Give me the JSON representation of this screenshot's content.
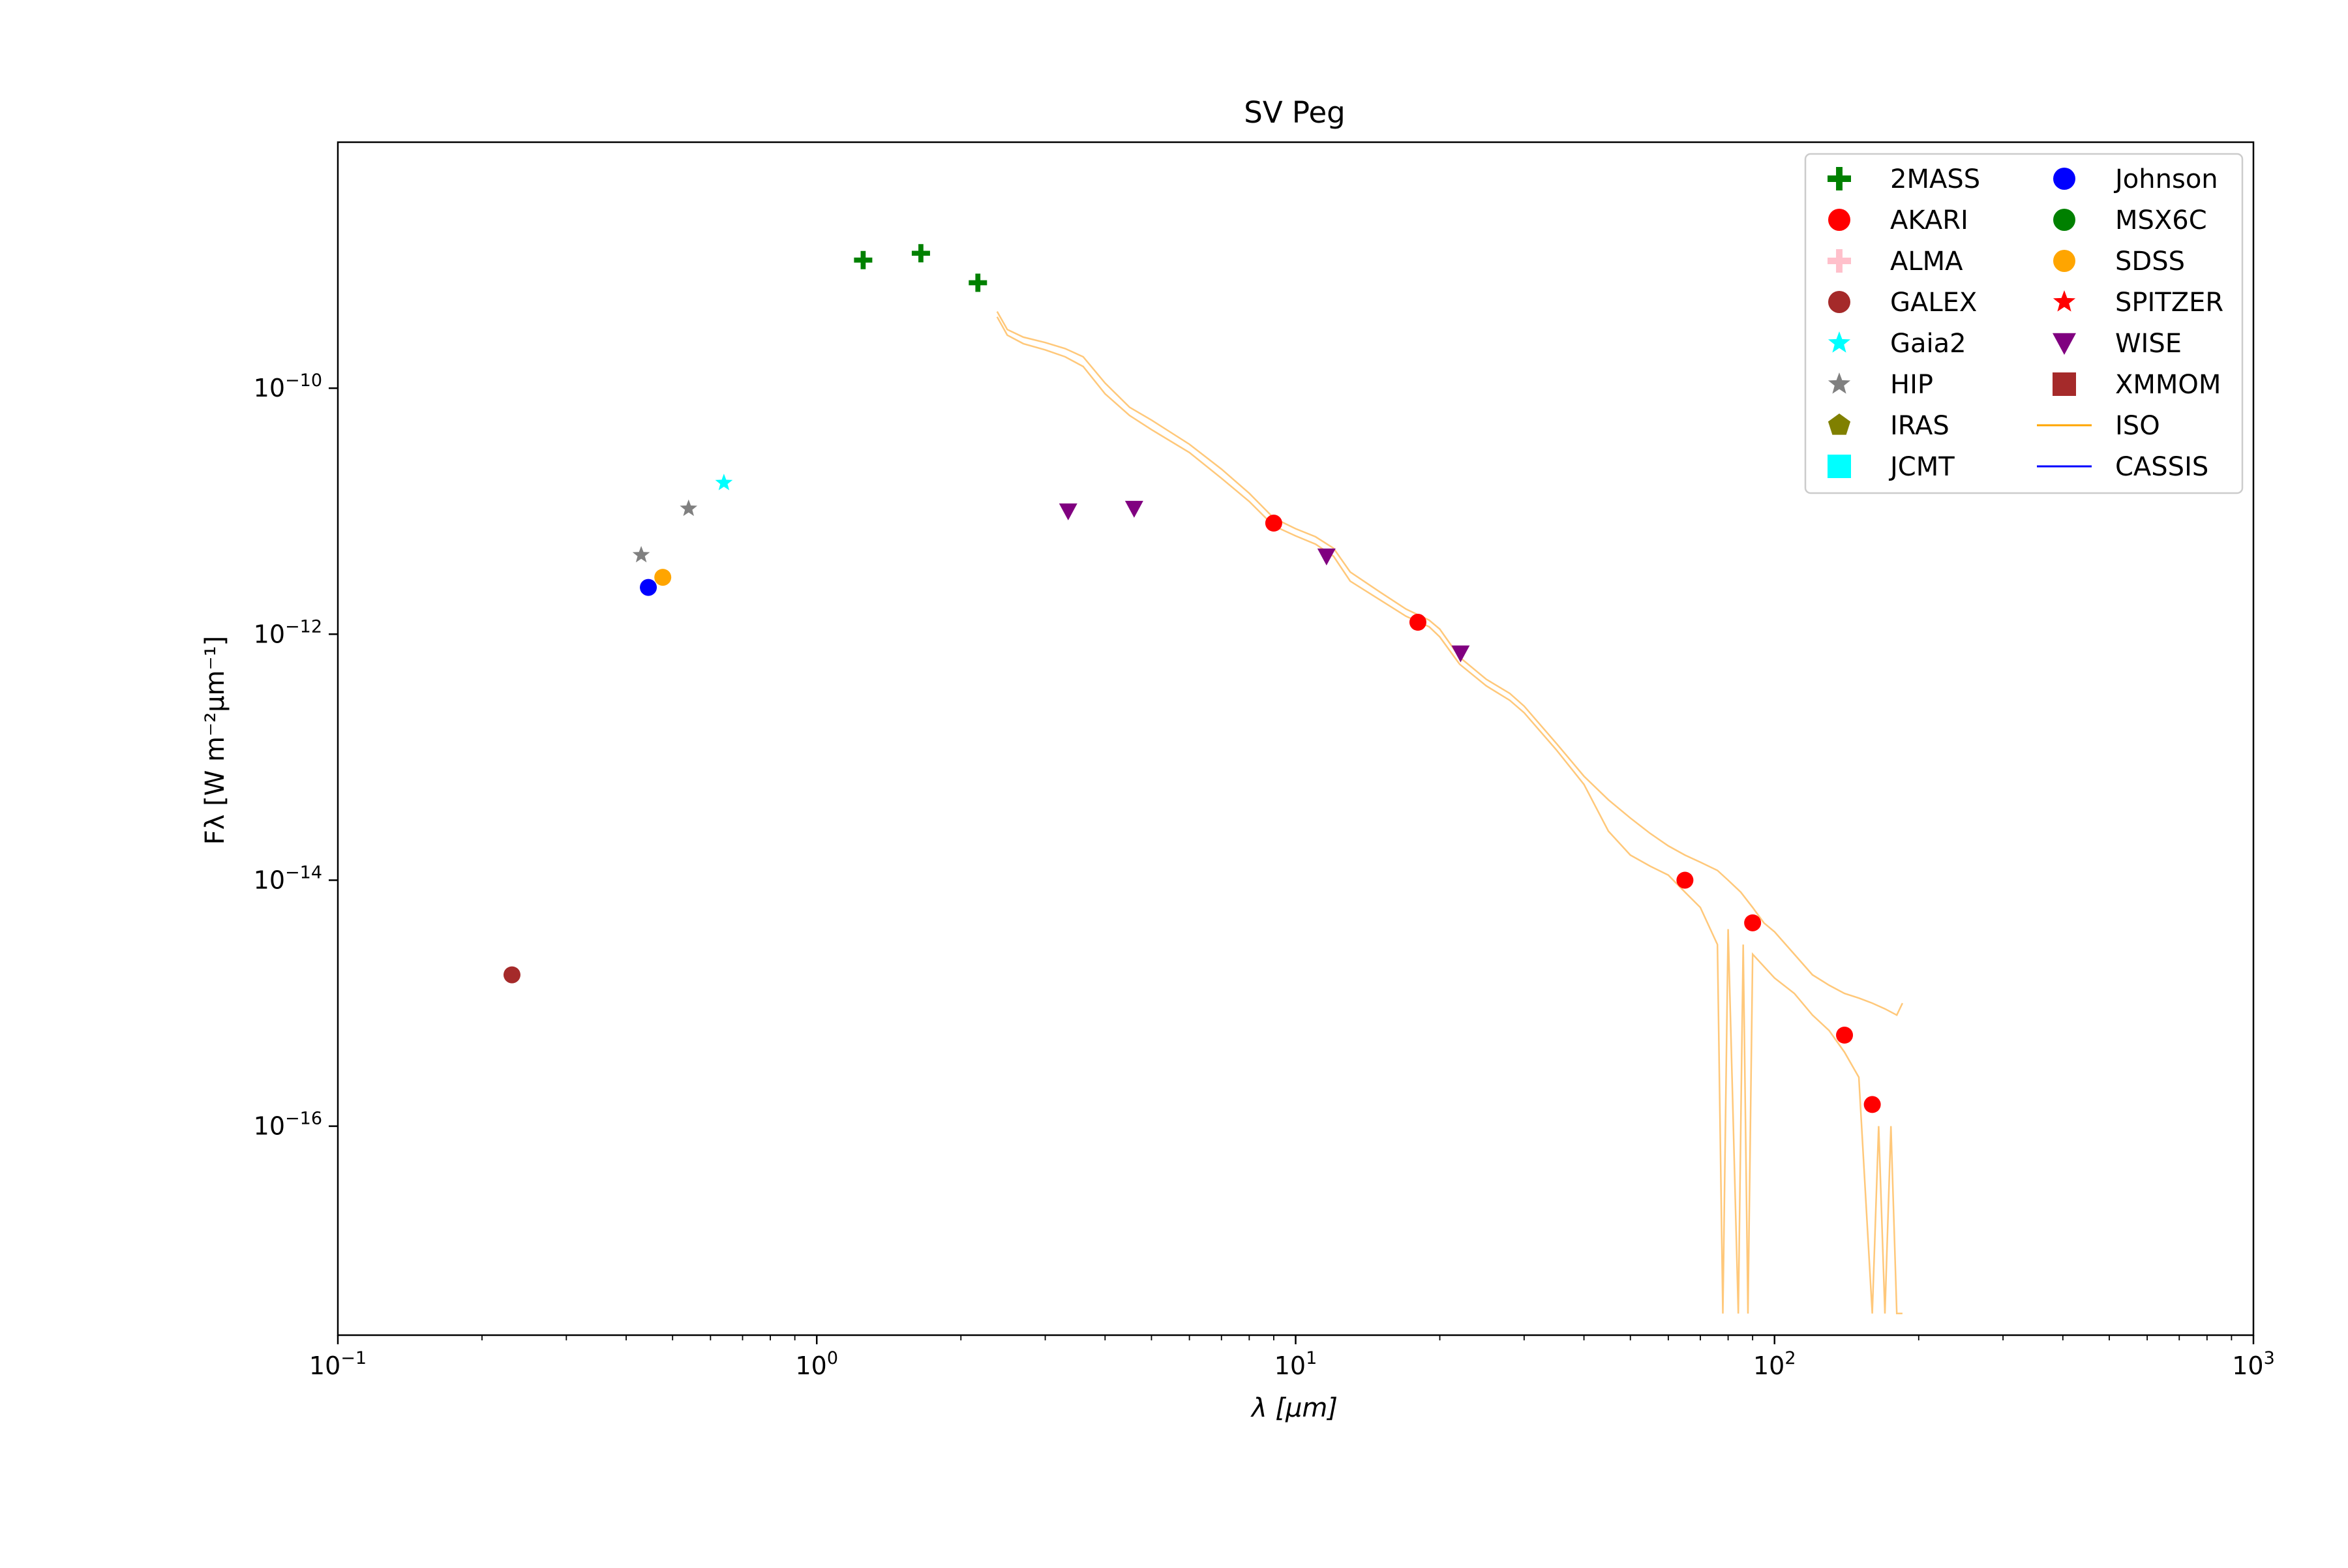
{
  "chart_data": {
    "type": "scatter",
    "title": "SV Peg",
    "xlabel": "λ [μm]",
    "ylabel": "Fλ [W m⁻²μm⁻¹]",
    "xscale": "log",
    "yscale": "log",
    "xlim": [
      0.1,
      1000
    ],
    "ylim": [
      2e-18,
      1e-08
    ],
    "grid": false,
    "legend_placement": "top-right",
    "x_ticks": [
      {
        "value": 0.1,
        "base": "10",
        "exp": "−1"
      },
      {
        "value": 1,
        "base": "10",
        "exp": "0"
      },
      {
        "value": 10,
        "base": "10",
        "exp": "1"
      },
      {
        "value": 100,
        "base": "10",
        "exp": "2"
      },
      {
        "value": 1000,
        "base": "10",
        "exp": "3"
      }
    ],
    "y_ticks": [
      {
        "value": 1e-10,
        "base": "10",
        "exp": "−10"
      },
      {
        "value": 1e-12,
        "base": "10",
        "exp": "−12"
      },
      {
        "value": 1e-14,
        "base": "10",
        "exp": "−14"
      },
      {
        "value": 1e-16,
        "base": "10",
        "exp": "−16"
      }
    ],
    "legend": [
      {
        "name": "2MASS",
        "marker": "plus",
        "color": "#008000"
      },
      {
        "name": "AKARI",
        "marker": "circle",
        "color": "#ff0000"
      },
      {
        "name": "ALMA",
        "marker": "plus",
        "color": "#ffc0cb"
      },
      {
        "name": "GALEX",
        "marker": "circle",
        "color": "#a52a2a"
      },
      {
        "name": "Gaia2",
        "marker": "star",
        "color": "#00ffff"
      },
      {
        "name": "HIP",
        "marker": "star",
        "color": "#808080"
      },
      {
        "name": "IRAS",
        "marker": "pentagon",
        "color": "#808000"
      },
      {
        "name": "JCMT",
        "marker": "square",
        "color": "#00ffff"
      },
      {
        "name": "Johnson",
        "marker": "circle",
        "color": "#0000ff"
      },
      {
        "name": "MSX6C",
        "marker": "circle",
        "color": "#008000"
      },
      {
        "name": "SDSS",
        "marker": "circle",
        "color": "#ffa500"
      },
      {
        "name": "SPITZER",
        "marker": "star",
        "color": "#ff0000"
      },
      {
        "name": "WISE",
        "marker": "triangle-down",
        "color": "#800080"
      },
      {
        "name": "XMMOM",
        "marker": "square",
        "color": "#a52a2a"
      },
      {
        "name": "ISO",
        "marker": "line",
        "color": "#ffa500"
      },
      {
        "name": "CASSIS",
        "marker": "line",
        "color": "#0000ff"
      }
    ],
    "series": [
      {
        "name": "2MASS",
        "marker": "plus",
        "color": "#008000",
        "points": [
          [
            1.25,
            1.1e-09
          ],
          [
            1.65,
            1.25e-09
          ],
          [
            2.17,
            7.2e-10
          ]
        ]
      },
      {
        "name": "AKARI",
        "marker": "circle",
        "color": "#ff0000",
        "points": [
          [
            9.0,
            8e-12
          ],
          [
            18.0,
            1.25e-12
          ],
          [
            65.0,
            1e-14
          ],
          [
            90.0,
            4.5e-15
          ],
          [
            140.0,
            5.5e-16
          ],
          [
            160.0,
            1.5e-16
          ]
        ]
      },
      {
        "name": "GALEX",
        "marker": "circle",
        "color": "#a52a2a",
        "points": [
          [
            0.231,
            1.7e-15
          ]
        ]
      },
      {
        "name": "Gaia2",
        "marker": "star",
        "color": "#00ffff",
        "points": [
          [
            0.64,
            1.7e-11
          ]
        ]
      },
      {
        "name": "HIP",
        "marker": "star",
        "color": "#808080",
        "points": [
          [
            0.43,
            4.4e-12
          ],
          [
            0.54,
            1.05e-11
          ]
        ]
      },
      {
        "name": "Johnson",
        "marker": "circle",
        "color": "#0000ff",
        "points": [
          [
            0.445,
            2.4e-12
          ]
        ]
      },
      {
        "name": "SDSS",
        "marker": "circle",
        "color": "#ffa500",
        "points": [
          [
            0.477,
            2.9e-12
          ]
        ]
      },
      {
        "name": "WISE",
        "marker": "triangle-down",
        "color": "#800080",
        "points": [
          [
            3.35,
            1e-11
          ],
          [
            4.6,
            1.05e-11
          ],
          [
            11.6,
            4.3e-12
          ],
          [
            22.1,
            7e-13
          ]
        ]
      }
    ],
    "spectrum": {
      "name": "ISO",
      "color": "#ffc87a",
      "upper": [
        [
          2.38,
          4.2e-10
        ],
        [
          2.5,
          3e-10
        ],
        [
          2.7,
          2.6e-10
        ],
        [
          3.0,
          2.35e-10
        ],
        [
          3.3,
          2.1e-10
        ],
        [
          3.6,
          1.8e-10
        ],
        [
          4.0,
          1.1e-10
        ],
        [
          4.5,
          7e-11
        ],
        [
          5.0,
          5.5e-11
        ],
        [
          6.0,
          3.5e-11
        ],
        [
          7.0,
          2.2e-11
        ],
        [
          8.0,
          1.4e-11
        ],
        [
          9.0,
          8.8e-12
        ],
        [
          10.0,
          7.2e-12
        ],
        [
          11.0,
          6.2e-12
        ],
        [
          12.0,
          5e-12
        ],
        [
          13.0,
          3.2e-12
        ],
        [
          15.0,
          2.2e-12
        ],
        [
          17.0,
          1.6e-12
        ],
        [
          19.0,
          1.3e-12
        ],
        [
          20.0,
          1.1e-12
        ],
        [
          22.0,
          6.5e-13
        ],
        [
          25.0,
          4.3e-13
        ],
        [
          28.0,
          3.3e-13
        ],
        [
          30.0,
          2.6e-13
        ],
        [
          35.0,
          1.3e-13
        ],
        [
          40.0,
          7e-14
        ],
        [
          45.0,
          4.5e-14
        ],
        [
          50.0,
          3.2e-14
        ],
        [
          55.0,
          2.4e-14
        ],
        [
          60.0,
          1.9e-14
        ],
        [
          65.0,
          1.6e-14
        ],
        [
          70.0,
          1.4e-14
        ],
        [
          76.0,
          1.2e-14
        ],
        [
          80.0,
          1e-14
        ],
        [
          85.0,
          8e-15
        ],
        [
          90.0,
          6e-15
        ],
        [
          95.0,
          4.5e-15
        ],
        [
          100.0,
          3.8e-15
        ],
        [
          110.0,
          2.5e-15
        ],
        [
          120.0,
          1.7e-15
        ],
        [
          130.0,
          1.4e-15
        ],
        [
          140.0,
          1.2e-15
        ],
        [
          150.0,
          1.1e-15
        ],
        [
          160.0,
          1e-15
        ],
        [
          170.0,
          9e-16
        ],
        [
          180.0,
          8e-16
        ],
        [
          185.0,
          1e-15
        ]
      ],
      "lower": [
        [
          2.38,
          3.8e-10
        ],
        [
          2.5,
          2.7e-10
        ],
        [
          2.7,
          2.3e-10
        ],
        [
          3.0,
          2.05e-10
        ],
        [
          3.3,
          1.8e-10
        ],
        [
          3.6,
          1.5e-10
        ],
        [
          4.0,
          9e-11
        ],
        [
          4.5,
          6e-11
        ],
        [
          5.0,
          4.6e-11
        ],
        [
          6.0,
          3e-11
        ],
        [
          7.0,
          1.85e-11
        ],
        [
          8.0,
          1.2e-11
        ],
        [
          9.0,
          7.6e-12
        ],
        [
          10.0,
          6.3e-12
        ],
        [
          11.0,
          5.4e-12
        ],
        [
          12.0,
          4.3e-12
        ],
        [
          13.0,
          2.7e-12
        ],
        [
          15.0,
          1.9e-12
        ],
        [
          17.0,
          1.4e-12
        ],
        [
          19.0,
          1.15e-12
        ],
        [
          20.0,
          9.5e-13
        ],
        [
          22.0,
          5.7e-13
        ],
        [
          25.0,
          3.8e-13
        ],
        [
          28.0,
          2.9e-13
        ],
        [
          30.0,
          2.3e-13
        ],
        [
          35.0,
          1.15e-13
        ],
        [
          40.0,
          6e-14
        ],
        [
          45.0,
          2.5e-14
        ],
        [
          50.0,
          1.6e-14
        ],
        [
          55.0,
          1.3e-14
        ],
        [
          60.0,
          1.1e-14
        ],
        [
          65.0,
          8e-15
        ],
        [
          70.0,
          6e-15
        ],
        [
          76.0,
          3e-15
        ],
        [
          78.0,
          3e-18
        ],
        [
          80.0,
          4e-15
        ],
        [
          84.0,
          3e-18
        ],
        [
          86.0,
          3e-15
        ],
        [
          88.0,
          3e-18
        ],
        [
          90.0,
          2.5e-15
        ],
        [
          100.0,
          1.6e-15
        ],
        [
          110.0,
          1.2e-15
        ],
        [
          120.0,
          8e-16
        ],
        [
          130.0,
          6e-16
        ],
        [
          140.0,
          4e-16
        ],
        [
          150.0,
          2.5e-16
        ],
        [
          160.0,
          3e-18
        ],
        [
          165.0,
          1e-16
        ],
        [
          170.0,
          3e-18
        ],
        [
          175.0,
          1e-16
        ],
        [
          180.0,
          3e-18
        ],
        [
          185.0,
          3e-18
        ]
      ]
    }
  }
}
